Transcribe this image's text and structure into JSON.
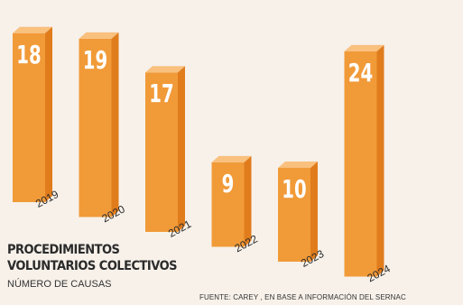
{
  "chart_data": {
    "type": "bar",
    "categories": [
      "2019",
      "2020",
      "2021",
      "2022",
      "2023",
      "2024"
    ],
    "values": [
      18,
      19,
      17,
      9,
      10,
      24
    ],
    "title": "PROCEDIMIENTOS VOLUNTARIOS COLECTIVOS",
    "title_lines": [
      "PROCEDIMIENTOS",
      "VOLUNTARIOS COLECTIVOS"
    ],
    "subtitle": "NÚMERO DE CAUSAS",
    "source": "FUENTE: CAREY , EN BASE A INFORMACIÓN DEL SERNAC",
    "colors": {
      "bar_front": "#f19a38",
      "bar_side": "#e07c1c",
      "bar_top": "#f9c07e",
      "value_text": "#ffffff",
      "background": "#f7f1ea"
    }
  }
}
